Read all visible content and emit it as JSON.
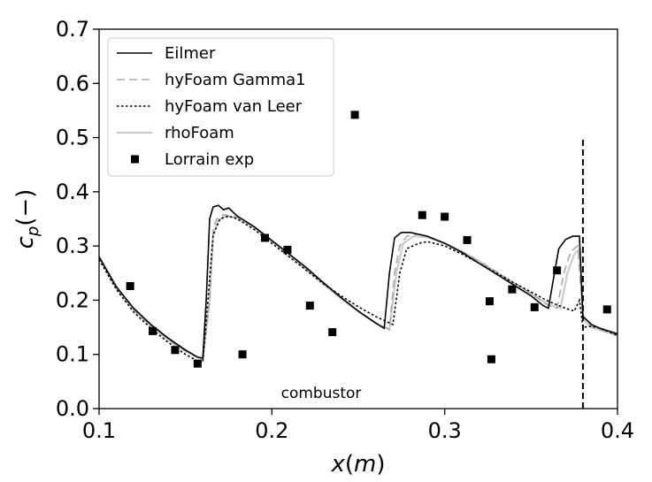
{
  "chart_data": {
    "type": "line",
    "xlabel": "x(m)",
    "ylabel": "c_p(−)",
    "xlim": [
      0.1,
      0.4
    ],
    "ylim": [
      0.0,
      0.7
    ],
    "x_ticks": [
      "0.1",
      "0.2",
      "0.3",
      "0.4"
    ],
    "y_ticks": [
      "0.0",
      "0.1",
      "0.2",
      "0.3",
      "0.4",
      "0.5",
      "0.6",
      "0.7"
    ],
    "legend_placement": "top-left",
    "grid": false,
    "annotation": "combustor",
    "vertical_line": {
      "x": 0.38,
      "y_range": [
        0.0,
        0.5
      ],
      "style": "dashed"
    },
    "series": [
      {
        "name": "Eilmer",
        "kind": "line",
        "style": "solid",
        "color": "#000000",
        "points": [
          [
            0.1,
            0.28
          ],
          [
            0.11,
            0.225
          ],
          [
            0.12,
            0.185
          ],
          [
            0.13,
            0.155
          ],
          [
            0.14,
            0.13
          ],
          [
            0.15,
            0.108
          ],
          [
            0.157,
            0.095
          ],
          [
            0.16,
            0.093
          ],
          [
            0.162,
            0.2
          ],
          [
            0.164,
            0.35
          ],
          [
            0.166,
            0.372
          ],
          [
            0.169,
            0.375
          ],
          [
            0.172,
            0.367
          ],
          [
            0.175,
            0.37
          ],
          [
            0.18,
            0.355
          ],
          [
            0.19,
            0.335
          ],
          [
            0.2,
            0.31
          ],
          [
            0.21,
            0.285
          ],
          [
            0.22,
            0.26
          ],
          [
            0.23,
            0.232
          ],
          [
            0.24,
            0.205
          ],
          [
            0.25,
            0.18
          ],
          [
            0.26,
            0.158
          ],
          [
            0.265,
            0.148
          ],
          [
            0.268,
            0.25
          ],
          [
            0.271,
            0.315
          ],
          [
            0.275,
            0.325
          ],
          [
            0.28,
            0.325
          ],
          [
            0.29,
            0.318
          ],
          [
            0.3,
            0.305
          ],
          [
            0.31,
            0.288
          ],
          [
            0.32,
            0.268
          ],
          [
            0.33,
            0.248
          ],
          [
            0.34,
            0.228
          ],
          [
            0.35,
            0.208
          ],
          [
            0.357,
            0.19
          ],
          [
            0.36,
            0.185
          ],
          [
            0.363,
            0.24
          ],
          [
            0.366,
            0.295
          ],
          [
            0.37,
            0.312
          ],
          [
            0.374,
            0.318
          ],
          [
            0.378,
            0.318
          ],
          [
            0.38,
            0.17
          ],
          [
            0.385,
            0.155
          ],
          [
            0.39,
            0.148
          ],
          [
            0.395,
            0.143
          ],
          [
            0.4,
            0.138
          ]
        ]
      },
      {
        "name": "hyFoam Gamma1",
        "kind": "line",
        "style": "dashed",
        "color": "#aaaaaa",
        "points": [
          [
            0.1,
            0.28
          ],
          [
            0.11,
            0.222
          ],
          [
            0.12,
            0.182
          ],
          [
            0.13,
            0.152
          ],
          [
            0.14,
            0.127
          ],
          [
            0.15,
            0.106
          ],
          [
            0.16,
            0.09
          ],
          [
            0.164,
            0.2
          ],
          [
            0.166,
            0.33
          ],
          [
            0.168,
            0.35
          ],
          [
            0.172,
            0.358
          ],
          [
            0.18,
            0.353
          ],
          [
            0.19,
            0.335
          ],
          [
            0.2,
            0.31
          ],
          [
            0.21,
            0.285
          ],
          [
            0.22,
            0.258
          ],
          [
            0.23,
            0.23
          ],
          [
            0.24,
            0.204
          ],
          [
            0.25,
            0.18
          ],
          [
            0.26,
            0.158
          ],
          [
            0.268,
            0.146
          ],
          [
            0.271,
            0.25
          ],
          [
            0.274,
            0.3
          ],
          [
            0.278,
            0.318
          ],
          [
            0.285,
            0.322
          ],
          [
            0.29,
            0.318
          ],
          [
            0.3,
            0.305
          ],
          [
            0.31,
            0.29
          ],
          [
            0.32,
            0.272
          ],
          [
            0.33,
            0.252
          ],
          [
            0.34,
            0.232
          ],
          [
            0.35,
            0.212
          ],
          [
            0.36,
            0.19
          ],
          [
            0.365,
            0.185
          ],
          [
            0.369,
            0.25
          ],
          [
            0.373,
            0.29
          ],
          [
            0.377,
            0.3
          ],
          [
            0.38,
            0.17
          ],
          [
            0.385,
            0.152
          ],
          [
            0.39,
            0.145
          ],
          [
            0.395,
            0.14
          ],
          [
            0.4,
            0.135
          ]
        ]
      },
      {
        "name": "hyFoam van Leer",
        "kind": "line",
        "style": "dotted",
        "color": "#000000",
        "points": [
          [
            0.1,
            0.275
          ],
          [
            0.11,
            0.22
          ],
          [
            0.12,
            0.178
          ],
          [
            0.13,
            0.148
          ],
          [
            0.14,
            0.122
          ],
          [
            0.15,
            0.1
          ],
          [
            0.157,
            0.088
          ],
          [
            0.16,
            0.085
          ],
          [
            0.163,
            0.2
          ],
          [
            0.166,
            0.32
          ],
          [
            0.17,
            0.35
          ],
          [
            0.175,
            0.355
          ],
          [
            0.18,
            0.35
          ],
          [
            0.19,
            0.33
          ],
          [
            0.2,
            0.305
          ],
          [
            0.21,
            0.28
          ],
          [
            0.22,
            0.255
          ],
          [
            0.23,
            0.23
          ],
          [
            0.24,
            0.208
          ],
          [
            0.25,
            0.188
          ],
          [
            0.26,
            0.17
          ],
          [
            0.27,
            0.155
          ],
          [
            0.274,
            0.25
          ],
          [
            0.278,
            0.295
          ],
          [
            0.285,
            0.305
          ],
          [
            0.29,
            0.308
          ],
          [
            0.3,
            0.3
          ],
          [
            0.31,
            0.285
          ],
          [
            0.32,
            0.268
          ],
          [
            0.33,
            0.25
          ],
          [
            0.34,
            0.232
          ],
          [
            0.35,
            0.215
          ],
          [
            0.36,
            0.198
          ],
          [
            0.37,
            0.185
          ],
          [
            0.375,
            0.18
          ],
          [
            0.378,
            0.2
          ],
          [
            0.38,
            0.15
          ],
          [
            0.385,
            0.152
          ],
          [
            0.39,
            0.148
          ],
          [
            0.395,
            0.142
          ],
          [
            0.4,
            0.135
          ]
        ]
      },
      {
        "name": "rhoFoam",
        "kind": "line",
        "style": "solid",
        "color": "#cccccc",
        "points": [
          [
            0.1,
            0.28
          ],
          [
            0.11,
            0.222
          ],
          [
            0.12,
            0.182
          ],
          [
            0.13,
            0.152
          ],
          [
            0.14,
            0.127
          ],
          [
            0.15,
            0.106
          ],
          [
            0.16,
            0.09
          ],
          [
            0.164,
            0.2
          ],
          [
            0.166,
            0.32
          ],
          [
            0.169,
            0.348
          ],
          [
            0.173,
            0.355
          ],
          [
            0.18,
            0.352
          ],
          [
            0.19,
            0.333
          ],
          [
            0.2,
            0.308
          ],
          [
            0.21,
            0.283
          ],
          [
            0.22,
            0.256
          ],
          [
            0.23,
            0.229
          ],
          [
            0.24,
            0.203
          ],
          [
            0.25,
            0.179
          ],
          [
            0.26,
            0.158
          ],
          [
            0.268,
            0.146
          ],
          [
            0.272,
            0.25
          ],
          [
            0.276,
            0.305
          ],
          [
            0.282,
            0.318
          ],
          [
            0.29,
            0.316
          ],
          [
            0.3,
            0.305
          ],
          [
            0.31,
            0.29
          ],
          [
            0.32,
            0.272
          ],
          [
            0.33,
            0.252
          ],
          [
            0.34,
            0.232
          ],
          [
            0.35,
            0.212
          ],
          [
            0.36,
            0.192
          ],
          [
            0.367,
            0.185
          ],
          [
            0.371,
            0.25
          ],
          [
            0.375,
            0.285
          ],
          [
            0.378,
            0.295
          ],
          [
            0.38,
            0.165
          ],
          [
            0.385,
            0.15
          ],
          [
            0.39,
            0.145
          ],
          [
            0.395,
            0.14
          ],
          [
            0.4,
            0.135
          ]
        ]
      },
      {
        "name": "Lorrain exp",
        "kind": "scatter",
        "marker": "square",
        "color": "#000000",
        "points": [
          [
            0.118,
            0.226
          ],
          [
            0.131,
            0.143
          ],
          [
            0.144,
            0.108
          ],
          [
            0.157,
            0.083
          ],
          [
            0.183,
            0.1
          ],
          [
            0.196,
            0.315
          ],
          [
            0.209,
            0.293
          ],
          [
            0.222,
            0.19
          ],
          [
            0.235,
            0.141
          ],
          [
            0.248,
            0.542
          ],
          [
            0.287,
            0.357
          ],
          [
            0.3,
            0.354
          ],
          [
            0.313,
            0.311
          ],
          [
            0.326,
            0.198
          ],
          [
            0.327,
            0.091
          ],
          [
            0.339,
            0.22
          ],
          [
            0.352,
            0.187
          ],
          [
            0.365,
            0.255
          ],
          [
            0.394,
            0.183
          ]
        ]
      }
    ]
  }
}
